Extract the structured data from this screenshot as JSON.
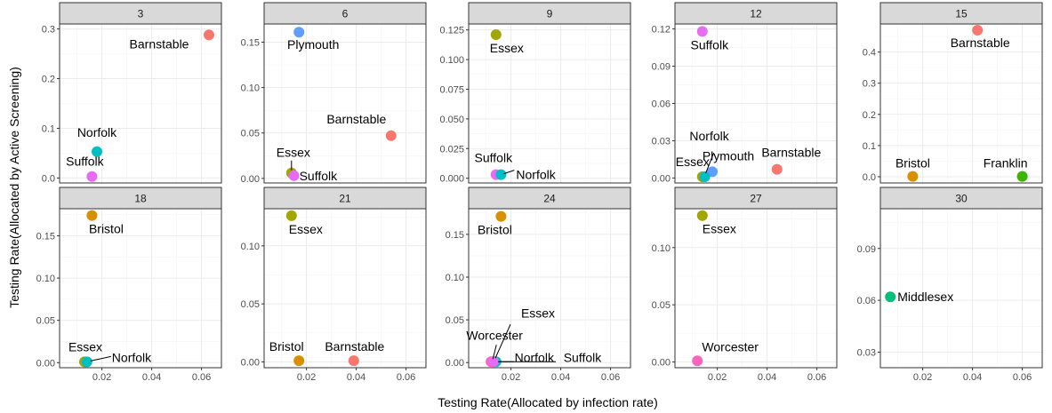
{
  "chart_data": {
    "type": "scatter",
    "xlabel": "Testing Rate(Allocated by infection rate)",
    "ylabel": "Testing Rate(Allocated by Active Screening)",
    "xlim": [
      0.003,
      0.068
    ],
    "x_ticks": [
      0.02,
      0.04,
      0.06
    ],
    "x_tick_labels": [
      "0.02",
      "0.04",
      "0.06"
    ],
    "colors": {
      "Barnstable": "#f8766d",
      "Bristol": "#d89000",
      "Essex": "#a3a500",
      "Franklin": "#39b600",
      "Middlesex": "#00bf7d",
      "Norfolk": "#00bfc4",
      "Plymouth": "#619cff",
      "Suffolk": "#e76bf3",
      "Worcester": "#ff62bc"
    },
    "panels": [
      {
        "title": "3",
        "ylim": [
          -0.01,
          0.31
        ],
        "y_ticks": [
          0,
          0.1,
          0.2,
          0.3
        ],
        "y_tick_labels": [
          "0.0",
          "0.1",
          "0.2",
          "0.3"
        ],
        "points": [
          {
            "county": "Barnstable",
            "x": 0.063,
            "y": 0.288
          },
          {
            "county": "Norfolk",
            "x": 0.018,
            "y": 0.053
          },
          {
            "county": "Suffolk",
            "x": 0.016,
            "y": 0.003
          }
        ]
      },
      {
        "title": "6",
        "ylim": [
          -0.005,
          0.17
        ],
        "y_ticks": [
          0,
          0.05,
          0.1,
          0.15
        ],
        "y_tick_labels": [
          "0.00",
          "0.05",
          "0.10",
          "0.15"
        ],
        "points": [
          {
            "county": "Plymouth",
            "x": 0.017,
            "y": 0.161
          },
          {
            "county": "Barnstable",
            "x": 0.054,
            "y": 0.047
          },
          {
            "county": "Essex",
            "x": 0.014,
            "y": 0.006
          },
          {
            "county": "Suffolk",
            "x": 0.015,
            "y": 0.003
          }
        ]
      },
      {
        "title": "9",
        "ylim": [
          -0.004,
          0.13
        ],
        "y_ticks": [
          0,
          0.025,
          0.05,
          0.075,
          0.1,
          0.125
        ],
        "y_tick_labels": [
          "0.000",
          "0.025",
          "0.050",
          "0.075",
          "0.100",
          "0.125"
        ],
        "points": [
          {
            "county": "Essex",
            "x": 0.014,
            "y": 0.121
          },
          {
            "county": "Suffolk",
            "x": 0.014,
            "y": 0.003
          },
          {
            "county": "Norfolk",
            "x": 0.016,
            "y": 0.003
          }
        ]
      },
      {
        "title": "12",
        "ylim": [
          -0.004,
          0.124
        ],
        "y_ticks": [
          0,
          0.03,
          0.06,
          0.09,
          0.12
        ],
        "y_tick_labels": [
          "0.00",
          "0.03",
          "0.06",
          "0.09",
          "0.12"
        ],
        "points": [
          {
            "county": "Suffolk",
            "x": 0.014,
            "y": 0.118
          },
          {
            "county": "Barnstable",
            "x": 0.044,
            "y": 0.007
          },
          {
            "county": "Plymouth",
            "x": 0.018,
            "y": 0.005
          },
          {
            "county": "Essex",
            "x": 0.014,
            "y": 0.001
          },
          {
            "county": "Norfolk",
            "x": 0.015,
            "y": 0.001
          }
        ]
      },
      {
        "title": "15",
        "ylim": [
          -0.02,
          0.49
        ],
        "y_ticks": [
          0,
          0.1,
          0.2,
          0.3,
          0.4
        ],
        "y_tick_labels": [
          "0.0",
          "0.1",
          "0.2",
          "0.3",
          "0.4"
        ],
        "points": [
          {
            "county": "Barnstable",
            "x": 0.042,
            "y": 0.47
          },
          {
            "county": "Bristol",
            "x": 0.016,
            "y": 0.001
          },
          {
            "county": "Franklin",
            "x": 0.06,
            "y": 0.001
          }
        ]
      },
      {
        "title": "18",
        "ylim": [
          -0.006,
          0.182
        ],
        "y_ticks": [
          0,
          0.05,
          0.1,
          0.15
        ],
        "y_tick_labels": [
          "0.00",
          "0.05",
          "0.10",
          "0.15"
        ],
        "points": [
          {
            "county": "Bristol",
            "x": 0.016,
            "y": 0.174
          },
          {
            "county": "Essex",
            "x": 0.013,
            "y": 0.001
          },
          {
            "county": "Norfolk",
            "x": 0.014,
            "y": 0.001
          }
        ]
      },
      {
        "title": "21",
        "ylim": [
          -0.005,
          0.132
        ],
        "y_ticks": [
          0,
          0.05,
          0.1
        ],
        "y_tick_labels": [
          "0.00",
          "0.05",
          "0.10"
        ],
        "points": [
          {
            "county": "Essex",
            "x": 0.014,
            "y": 0.126
          },
          {
            "county": "Bristol",
            "x": 0.017,
            "y": 0.001
          },
          {
            "county": "Barnstable",
            "x": 0.039,
            "y": 0.001
          }
        ]
      },
      {
        "title": "24",
        "ylim": [
          -0.006,
          0.18
        ],
        "y_ticks": [
          0,
          0.05,
          0.1,
          0.15
        ],
        "y_tick_labels": [
          "0.00",
          "0.05",
          "0.10",
          "0.15"
        ],
        "points": [
          {
            "county": "Bristol",
            "x": 0.016,
            "y": 0.171
          },
          {
            "county": "Essex",
            "x": 0.013,
            "y": 0.001
          },
          {
            "county": "Worcester",
            "x": 0.012,
            "y": 0.001
          },
          {
            "county": "Norfolk",
            "x": 0.014,
            "y": 0.001
          },
          {
            "county": "Suffolk",
            "x": 0.013,
            "y": 0.001
          }
        ]
      },
      {
        "title": "27",
        "ylim": [
          -0.005,
          0.134
        ],
        "y_ticks": [
          0,
          0.05,
          0.1
        ],
        "y_tick_labels": [
          "0.00",
          "0.05",
          "0.10"
        ],
        "points": [
          {
            "county": "Essex",
            "x": 0.014,
            "y": 0.128
          },
          {
            "county": "Worcester",
            "x": 0.012,
            "y": 0.001
          }
        ]
      },
      {
        "title": "30",
        "ylim": [
          0.021,
          0.113
        ],
        "y_ticks": [
          0.03,
          0.06,
          0.09
        ],
        "y_tick_labels": [
          "0.03",
          "0.06",
          "0.09"
        ],
        "points": [
          {
            "county": "Middlesex",
            "x": 0.007,
            "y": 0.062
          }
        ]
      }
    ]
  }
}
